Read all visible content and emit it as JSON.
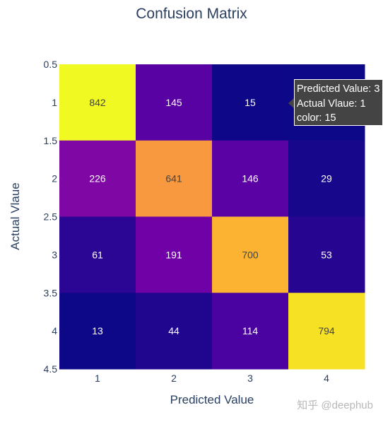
{
  "chart_data": {
    "type": "heatmap",
    "title": "Confusion Matrix",
    "xlabel": "Predicted Value",
    "ylabel": "Actual Vlaue",
    "x_categories": [
      1,
      2,
      3,
      4
    ],
    "y_categories": [
      1,
      2,
      3,
      4
    ],
    "x_tick_labels": [
      "1",
      "2",
      "3",
      "4"
    ],
    "y_tick_labels": [
      "0.5",
      "1",
      "1.5",
      "2",
      "2.5",
      "3",
      "3.5",
      "4",
      "4.5"
    ],
    "y_tick_values": [
      0.5,
      1,
      1.5,
      2,
      2.5,
      3,
      3.5,
      4,
      4.5
    ],
    "ylim": [
      0.5,
      4.5
    ],
    "z": [
      [
        842,
        145,
        15,
        null
      ],
      [
        226,
        641,
        146,
        29
      ],
      [
        61,
        191,
        700,
        53
      ],
      [
        13,
        44,
        114,
        794
      ]
    ],
    "colorscale": "plasma",
    "zmin": 13,
    "zmax": 842
  },
  "hover": {
    "line1": "Predicted Value: 3",
    "line2": "Actual Vlaue: 1",
    "line3": "color: 15"
  },
  "watermark": "知乎 @deephub"
}
